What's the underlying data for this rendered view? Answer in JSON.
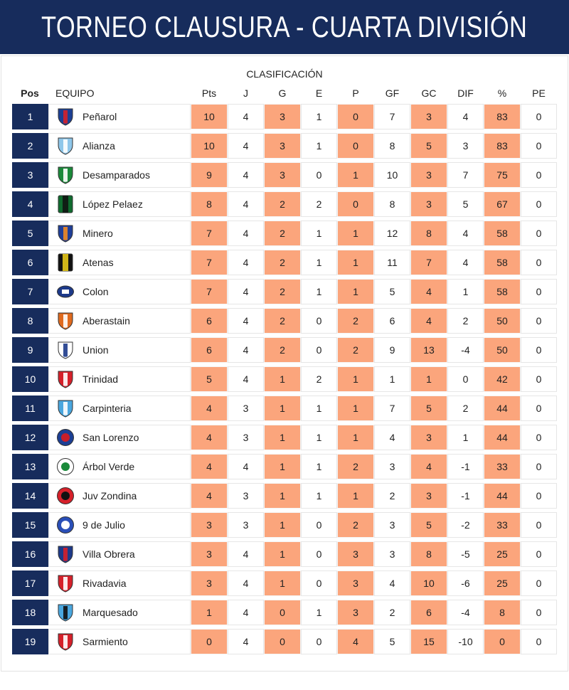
{
  "title": "TORNEO CLAUSURA - CUARTA DIVISIÓN",
  "subtitle": "CLASIFICACIÓN",
  "headers": {
    "pos": "Pos",
    "team": "EQUIPO",
    "pts": "Pts",
    "j": "J",
    "g": "G",
    "e": "E",
    "p": "P",
    "gf": "GF",
    "gc": "GC",
    "dif": "DIF",
    "pct": "%",
    "pe": "PE"
  },
  "colors": {
    "navy": "#172c5c",
    "highlight": "#fba57c"
  },
  "rows": [
    {
      "pos": "1",
      "team": "Peñarol",
      "pts": "10",
      "j": "4",
      "g": "3",
      "e": "1",
      "p": "0",
      "gf": "7",
      "gc": "3",
      "dif": "4",
      "pct": "83",
      "pe": "0",
      "logo": {
        "shape": "shield",
        "c1": "#1c3f94",
        "c2": "#d6202a"
      }
    },
    {
      "pos": "2",
      "team": "Alianza",
      "pts": "10",
      "j": "4",
      "g": "3",
      "e": "1",
      "p": "0",
      "gf": "8",
      "gc": "5",
      "dif": "3",
      "pct": "83",
      "pe": "0",
      "logo": {
        "shape": "shield",
        "c1": "#8fc7ea",
        "c2": "#ffffff"
      }
    },
    {
      "pos": "3",
      "team": "Desamparados",
      "pts": "9",
      "j": "4",
      "g": "3",
      "e": "0",
      "p": "1",
      "gf": "10",
      "gc": "3",
      "dif": "7",
      "pct": "75",
      "pe": "0",
      "logo": {
        "shape": "shield",
        "c1": "#1a8a3a",
        "c2": "#ffffff"
      }
    },
    {
      "pos": "4",
      "team": "López Pelaez",
      "pts": "8",
      "j": "4",
      "g": "2",
      "e": "2",
      "p": "0",
      "gf": "8",
      "gc": "3",
      "dif": "5",
      "pct": "67",
      "pe": "0",
      "logo": {
        "shape": "square",
        "c1": "#0f6b2e",
        "c2": "#111111"
      }
    },
    {
      "pos": "5",
      "team": "Minero",
      "pts": "7",
      "j": "4",
      "g": "2",
      "e": "1",
      "p": "1",
      "gf": "12",
      "gc": "8",
      "dif": "4",
      "pct": "58",
      "pe": "0",
      "logo": {
        "shape": "shield",
        "c1": "#1f3f99",
        "c2": "#f08a24"
      }
    },
    {
      "pos": "6",
      "team": "Atenas",
      "pts": "7",
      "j": "4",
      "g": "2",
      "e": "1",
      "p": "1",
      "gf": "11",
      "gc": "7",
      "dif": "4",
      "pct": "58",
      "pe": "0",
      "logo": {
        "shape": "square",
        "c1": "#111111",
        "c2": "#f2d21b"
      }
    },
    {
      "pos": "7",
      "team": "Colon",
      "pts": "7",
      "j": "4",
      "g": "2",
      "e": "1",
      "p": "1",
      "gf": "5",
      "gc": "4",
      "dif": "1",
      "pct": "58",
      "pe": "0",
      "logo": {
        "shape": "oval",
        "c1": "#1d3a8a",
        "c2": "#ffffff"
      }
    },
    {
      "pos": "8",
      "team": "Aberastain",
      "pts": "6",
      "j": "4",
      "g": "2",
      "e": "0",
      "p": "2",
      "gf": "6",
      "gc": "4",
      "dif": "2",
      "pct": "50",
      "pe": "0",
      "logo": {
        "shape": "shield",
        "c1": "#e06a1e",
        "c2": "#ffffff"
      }
    },
    {
      "pos": "9",
      "team": "Union",
      "pts": "6",
      "j": "4",
      "g": "2",
      "e": "0",
      "p": "2",
      "gf": "9",
      "gc": "13",
      "dif": "-4",
      "pct": "50",
      "pe": "0",
      "logo": {
        "shape": "shield",
        "c1": "#ffffff",
        "c2": "#1d3a8a"
      }
    },
    {
      "pos": "10",
      "team": "Trinidad",
      "pts": "5",
      "j": "4",
      "g": "1",
      "e": "2",
      "p": "1",
      "gf": "1",
      "gc": "1",
      "dif": "0",
      "pct": "42",
      "pe": "0",
      "logo": {
        "shape": "shield",
        "c1": "#d6202a",
        "c2": "#ffffff"
      }
    },
    {
      "pos": "11",
      "team": "Carpinteria",
      "pts": "4",
      "j": "3",
      "g": "1",
      "e": "1",
      "p": "1",
      "gf": "7",
      "gc": "5",
      "dif": "2",
      "pct": "44",
      "pe": "0",
      "logo": {
        "shape": "shield",
        "c1": "#4aa7df",
        "c2": "#ffffff"
      }
    },
    {
      "pos": "12",
      "team": "San Lorenzo",
      "pts": "4",
      "j": "3",
      "g": "1",
      "e": "1",
      "p": "1",
      "gf": "4",
      "gc": "3",
      "dif": "1",
      "pct": "44",
      "pe": "0",
      "logo": {
        "shape": "round",
        "c1": "#1c3f94",
        "c2": "#c81e2a"
      }
    },
    {
      "pos": "13",
      "team": "Árbol Verde",
      "pts": "4",
      "j": "4",
      "g": "1",
      "e": "1",
      "p": "2",
      "gf": "3",
      "gc": "4",
      "dif": "-1",
      "pct": "33",
      "pe": "0",
      "logo": {
        "shape": "round",
        "c1": "#ffffff",
        "c2": "#1a8a3a"
      }
    },
    {
      "pos": "14",
      "team": "Juv Zondina",
      "pts": "4",
      "j": "3",
      "g": "1",
      "e": "1",
      "p": "1",
      "gf": "2",
      "gc": "3",
      "dif": "-1",
      "pct": "44",
      "pe": "0",
      "logo": {
        "shape": "round",
        "c1": "#d6202a",
        "c2": "#111111"
      }
    },
    {
      "pos": "15",
      "team": "9 de Julio",
      "pts": "3",
      "j": "3",
      "g": "1",
      "e": "0",
      "p": "2",
      "gf": "3",
      "gc": "5",
      "dif": "-2",
      "pct": "33",
      "pe": "0",
      "logo": {
        "shape": "round",
        "c1": "#2a4fb8",
        "c2": "#ffffff"
      }
    },
    {
      "pos": "16",
      "team": "Villa Obrera",
      "pts": "3",
      "j": "4",
      "g": "1",
      "e": "0",
      "p": "3",
      "gf": "3",
      "gc": "8",
      "dif": "-5",
      "pct": "25",
      "pe": "0",
      "logo": {
        "shape": "shield",
        "c1": "#1d3a8a",
        "c2": "#d6202a"
      }
    },
    {
      "pos": "17",
      "team": "Rivadavia",
      "pts": "3",
      "j": "4",
      "g": "1",
      "e": "0",
      "p": "3",
      "gf": "4",
      "gc": "10",
      "dif": "-6",
      "pct": "25",
      "pe": "0",
      "logo": {
        "shape": "shield",
        "c1": "#d6202a",
        "c2": "#ffffff"
      }
    },
    {
      "pos": "18",
      "team": "Marquesado",
      "pts": "1",
      "j": "4",
      "g": "0",
      "e": "1",
      "p": "3",
      "gf": "2",
      "gc": "6",
      "dif": "-4",
      "pct": "8",
      "pe": "0",
      "logo": {
        "shape": "shield",
        "c1": "#4aa7df",
        "c2": "#111111"
      }
    },
    {
      "pos": "19",
      "team": "Sarmiento",
      "pts": "0",
      "j": "4",
      "g": "0",
      "e": "0",
      "p": "4",
      "gf": "5",
      "gc": "15",
      "dif": "-10",
      "pct": "0",
      "pe": "0",
      "logo": {
        "shape": "shield",
        "c1": "#d6202a",
        "c2": "#ffffff"
      }
    }
  ]
}
